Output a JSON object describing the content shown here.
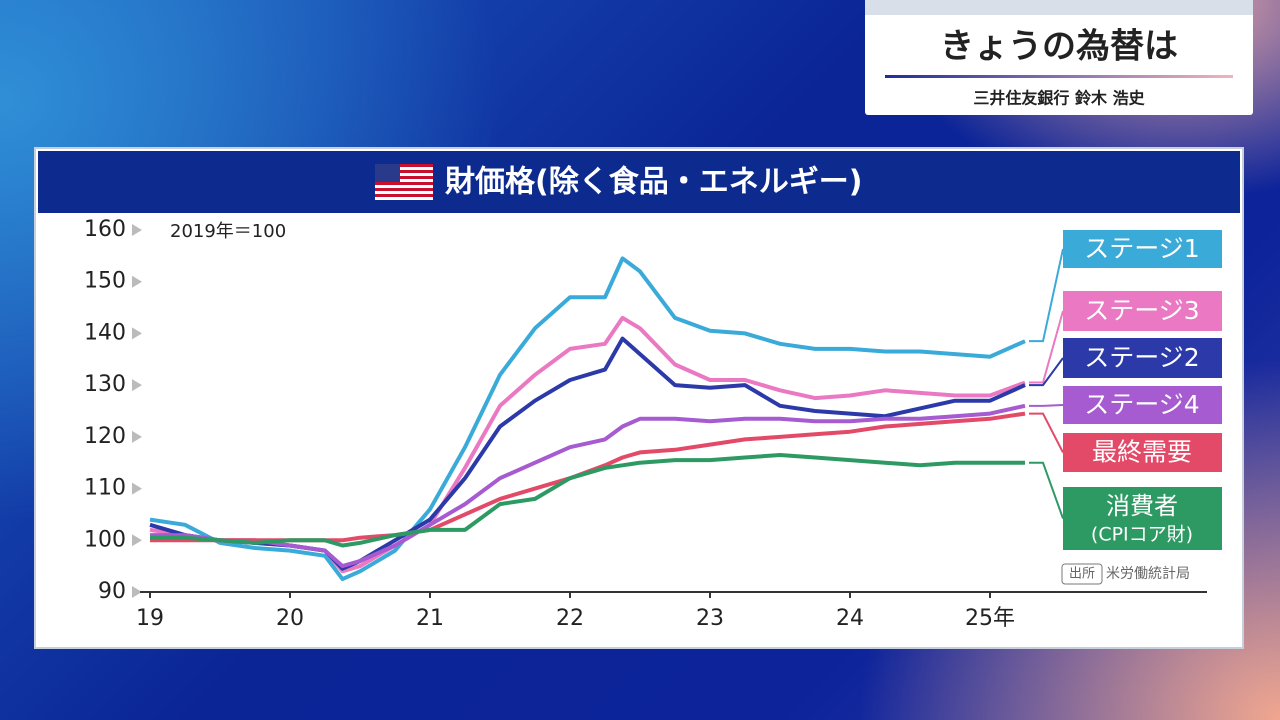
{
  "header": {
    "title": "きょうの為替は",
    "presenter": "三井住友銀行 鈴木 浩史"
  },
  "chart_data": {
    "type": "line",
    "title": "財価格(除く食品・エネルギー)",
    "annotation": "2019年＝100",
    "source_label": "出所",
    "source": "米労働統計局",
    "x": [
      19,
      19.25,
      19.5,
      19.75,
      20,
      20.25,
      20.375,
      20.5,
      20.75,
      21,
      21.25,
      21.5,
      21.75,
      22,
      22.25,
      22.375,
      22.5,
      22.75,
      23,
      23.25,
      23.5,
      23.75,
      24,
      24.25,
      24.5,
      24.75,
      25,
      25.25
    ],
    "xlim": [
      19,
      26.55
    ],
    "xticks": [
      19,
      20,
      21,
      22,
      23,
      24,
      {
        "value": 25,
        "label": "25年"
      }
    ],
    "ylim": [
      90,
      160
    ],
    "yticks": [
      90,
      100,
      110,
      120,
      130,
      140,
      150,
      160
    ],
    "grid": false,
    "series": [
      {
        "name": "ステージ1",
        "color": "#3aaad9",
        "values": [
          104,
          103,
          99.5,
          98.5,
          98,
          97,
          92.5,
          94,
          98,
          106,
          118,
          132,
          141,
          147,
          147,
          154.5,
          152,
          143,
          140.5,
          140,
          138,
          137,
          137,
          136.5,
          136.5,
          136,
          135.5,
          138.5
        ]
      },
      {
        "name": "ステージ3",
        "color": "#ea78c2",
        "values": [
          102,
          101,
          100,
          99.5,
          99,
          98,
          94,
          95,
          99,
          103,
          114,
          126,
          132,
          137,
          138,
          143,
          141,
          134,
          131,
          131,
          129,
          127.5,
          128,
          129,
          128.5,
          128,
          128,
          130.5
        ]
      },
      {
        "name": "ステージ2",
        "color": "#2b3aa8",
        "values": [
          103,
          101,
          100,
          99.5,
          99,
          98,
          94.5,
          96,
          100,
          104,
          112,
          122,
          127,
          131,
          133,
          139,
          136,
          130,
          129.5,
          130,
          126,
          125,
          124.5,
          124,
          125.5,
          127,
          127,
          130
        ]
      },
      {
        "name": "ステージ4",
        "color": "#a65bd0",
        "values": [
          101,
          101,
          100,
          100,
          99,
          98,
          95,
          96,
          99,
          103,
          107,
          112,
          115,
          118,
          119.5,
          122,
          123.5,
          123.5,
          123,
          123.5,
          123.5,
          123,
          123,
          123.5,
          123.5,
          124,
          124.5,
          126
        ]
      },
      {
        "name": "最終需要",
        "color": "#e24a68",
        "values": [
          100,
          100,
          100,
          100,
          100,
          100,
          100,
          100.5,
          101,
          102,
          105,
          108,
          110,
          112,
          114.5,
          116,
          117,
          117.5,
          118.5,
          119.5,
          120,
          120.5,
          121,
          122,
          122.5,
          123,
          123.5,
          124.5
        ]
      },
      {
        "name": "消費者",
        "note": "(CPIコア財)",
        "color": "#2e9a63",
        "values": [
          100.5,
          100.5,
          100,
          99.5,
          100,
          100,
          99,
          99.5,
          101,
          102,
          102,
          107,
          108,
          112,
          114,
          114.5,
          115,
          115.5,
          115.5,
          116,
          116.5,
          116,
          115.5,
          115,
          114.5,
          115,
          115,
          115
        ]
      }
    ]
  }
}
